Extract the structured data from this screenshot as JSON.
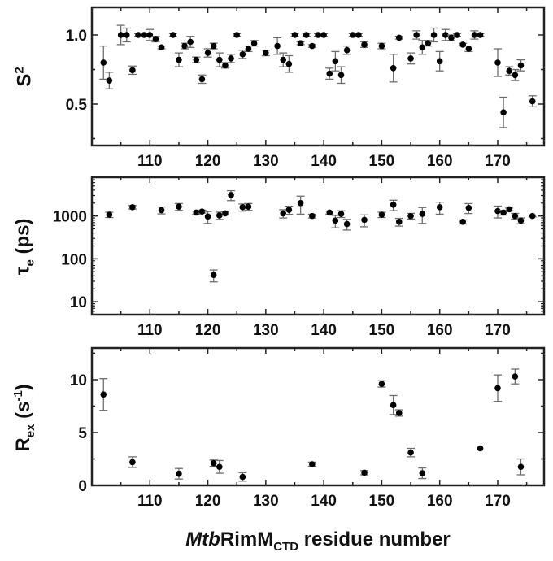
{
  "chart_data": [
    {
      "type": "scatter",
      "ylabel": {
        "main": "S",
        "sup": "2"
      },
      "xlim": [
        100,
        178
      ],
      "ylim": [
        0.2,
        1.2
      ],
      "yticks": [
        0.5,
        1.0
      ],
      "ytick_labels": [
        "0.5",
        "1.0"
      ],
      "yminor": [
        0.25,
        0.75
      ],
      "scale": "linear",
      "points": [
        [
          102,
          0.8,
          0.12
        ],
        [
          103,
          0.67,
          0.06
        ],
        [
          105,
          1.0,
          0.07
        ],
        [
          106,
          1.0,
          0.05
        ],
        [
          107,
          0.745,
          0.03
        ],
        [
          108,
          1.0,
          0.01
        ],
        [
          109,
          1.0,
          0.01
        ],
        [
          110,
          1.0,
          0.04
        ],
        [
          111,
          0.97,
          0.02
        ],
        [
          112,
          0.91,
          0.01
        ],
        [
          114,
          1.0,
          0.01
        ],
        [
          115,
          0.82,
          0.05
        ],
        [
          116,
          0.92,
          0.02
        ],
        [
          117,
          0.95,
          0.04
        ],
        [
          118,
          0.82,
          0.02
        ],
        [
          119,
          0.68,
          0.03
        ],
        [
          120,
          0.87,
          0.03
        ],
        [
          121,
          0.92,
          0.02
        ],
        [
          122,
          0.82,
          0.05
        ],
        [
          123,
          0.78,
          0.02
        ],
        [
          124,
          0.83,
          0.03
        ],
        [
          125,
          1.0,
          0.01
        ],
        [
          126,
          0.86,
          0.03
        ],
        [
          127,
          0.9,
          0.02
        ],
        [
          128,
          0.94,
          0.02
        ],
        [
          130,
          0.87,
          0.02
        ],
        [
          132,
          0.92,
          0.06
        ],
        [
          133,
          0.82,
          0.05
        ],
        [
          134,
          0.79,
          0.06
        ],
        [
          135,
          1.0,
          0.01
        ],
        [
          136,
          0.94,
          0.01
        ],
        [
          137,
          1.0,
          0.01
        ],
        [
          138,
          0.92,
          0.01
        ],
        [
          139,
          1.0,
          0.01
        ],
        [
          140,
          1.0,
          0.01
        ],
        [
          141,
          0.72,
          0.04
        ],
        [
          142,
          0.81,
          0.07
        ],
        [
          143,
          0.71,
          0.06
        ],
        [
          144,
          0.89,
          0.03
        ],
        [
          145,
          1.0,
          0.01
        ],
        [
          146,
          1.0,
          0.01
        ],
        [
          147,
          0.93,
          0.02
        ],
        [
          150,
          0.92,
          0.02
        ],
        [
          152,
          0.76,
          0.1
        ],
        [
          153,
          0.98,
          0.01
        ],
        [
          155,
          0.83,
          0.04
        ],
        [
          156,
          1.0,
          0.03
        ],
        [
          157,
          0.91,
          0.05
        ],
        [
          158,
          0.94,
          0.02
        ],
        [
          159,
          1.0,
          0.05
        ],
        [
          160,
          0.81,
          0.07
        ],
        [
          161,
          1.0,
          0.04
        ],
        [
          162,
          0.98,
          0.02
        ],
        [
          163,
          1.0,
          0.01
        ],
        [
          164,
          0.93,
          0.01
        ],
        [
          165,
          0.9,
          0.02
        ],
        [
          166,
          1.0,
          0.03
        ],
        [
          167,
          1.0,
          0.01
        ],
        [
          170,
          0.8,
          0.1
        ],
        [
          171,
          0.44,
          0.11
        ],
        [
          172,
          0.74,
          0.03
        ],
        [
          173,
          0.71,
          0.04
        ],
        [
          174,
          0.78,
          0.04
        ],
        [
          176,
          0.52,
          0.04
        ]
      ]
    },
    {
      "type": "scatter",
      "ylabel": {
        "main": "τ",
        "sub": "e",
        "rest": " (ps)"
      },
      "xlim": [
        100,
        178
      ],
      "ylim": [
        5,
        8000
      ],
      "yticks": [
        10,
        100,
        1000
      ],
      "ytick_labels": [
        "10",
        "100",
        "1000"
      ],
      "scale": "log",
      "points": [
        [
          103,
          1070,
          150
        ],
        [
          107,
          1600,
          150
        ],
        [
          112,
          1370,
          250
        ],
        [
          115,
          1650,
          300
        ],
        [
          118,
          1200,
          100
        ],
        [
          119,
          1270,
          100
        ],
        [
          120,
          970,
          300
        ],
        [
          121,
          42,
          13
        ],
        [
          122,
          1030,
          200
        ],
        [
          123,
          1150,
          100
        ],
        [
          124,
          3080,
          800
        ],
        [
          126,
          1600,
          300
        ],
        [
          127,
          1650,
          300
        ],
        [
          133,
          1150,
          250
        ],
        [
          134,
          1390,
          300
        ],
        [
          136,
          2000,
          900
        ],
        [
          138,
          1000,
          100
        ],
        [
          141,
          1200,
          100
        ],
        [
          142,
          780,
          250
        ],
        [
          143,
          1120,
          200
        ],
        [
          144,
          650,
          180
        ],
        [
          147,
          810,
          250
        ],
        [
          150,
          1070,
          150
        ],
        [
          152,
          1830,
          500
        ],
        [
          153,
          730,
          150
        ],
        [
          155,
          1000,
          150
        ],
        [
          157,
          1120,
          450
        ],
        [
          160,
          1600,
          500
        ],
        [
          164,
          730,
          80
        ],
        [
          165,
          1540,
          400
        ],
        [
          170,
          1300,
          400
        ],
        [
          171,
          1200,
          150
        ],
        [
          172,
          1430,
          100
        ],
        [
          173,
          1000,
          150
        ],
        [
          174,
          780,
          120
        ],
        [
          176,
          1000,
          50
        ]
      ],
      "xticks": [
        110,
        120,
        130,
        140,
        150,
        160,
        170
      ],
      "xtick_labels": [
        "110",
        "120",
        "130",
        "140",
        "150",
        "160",
        "170"
      ]
    },
    {
      "type": "scatter",
      "ylabel": {
        "main": "R",
        "sub": "ex",
        "rest": " (s",
        "sup": "-1",
        "end": ")"
      },
      "xlim": [
        100,
        178
      ],
      "ylim": [
        0,
        13
      ],
      "yticks": [
        0,
        5,
        10
      ],
      "ytick_labels": [
        "0",
        "5",
        "10"
      ],
      "yminor": [
        2.5,
        7.5,
        12.5
      ],
      "scale": "linear",
      "points": [
        [
          102,
          8.6,
          1.5
        ],
        [
          107,
          2.2,
          0.5
        ],
        [
          115,
          1.1,
          0.5
        ],
        [
          121,
          2.1,
          0.3
        ],
        [
          122,
          1.75,
          0.6
        ],
        [
          126,
          0.8,
          0.4
        ],
        [
          138,
          2.0,
          0.2
        ],
        [
          147,
          1.2,
          0.2
        ],
        [
          150,
          9.6,
          0.3
        ],
        [
          152,
          7.6,
          0.9
        ],
        [
          153,
          6.85,
          0.3
        ],
        [
          155,
          3.1,
          0.4
        ],
        [
          157,
          1.15,
          0.5
        ],
        [
          167,
          3.5,
          0
        ],
        [
          170,
          9.2,
          1.25
        ],
        [
          173,
          10.3,
          0.7
        ],
        [
          174,
          1.75,
          0.75
        ]
      ],
      "xticks": [
        110,
        120,
        130,
        140,
        150,
        160,
        170
      ],
      "xtick_labels": [
        "110",
        "120",
        "130",
        "140",
        "150",
        "160",
        "170"
      ]
    }
  ],
  "xlabel": {
    "italic": "Mtb",
    "main": "RimM",
    "sub": "CTD",
    "rest": " residue number"
  },
  "colors": {
    "marker": "#000000",
    "errorbar": "#6e6e6e",
    "axis": "#222222"
  }
}
